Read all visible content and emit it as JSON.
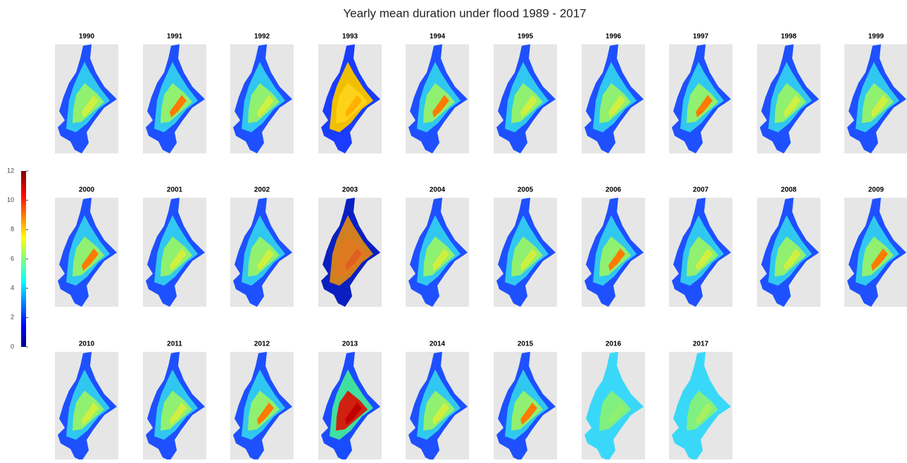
{
  "title": "Yearly mean duration under flood 1989 - 2017",
  "years": [
    "1990",
    "1991",
    "1992",
    "1993",
    "1994",
    "1995",
    "1996",
    "1997",
    "1998",
    "1999",
    "2000",
    "2001",
    "2002",
    "2003",
    "2004",
    "2005",
    "2006",
    "2007",
    "2008",
    "2009",
    "2010",
    "2011",
    "2012",
    "2013",
    "2014",
    "2015",
    "2016",
    "2017"
  ],
  "colorbar": {
    "lim": [
      0,
      12
    ],
    "ticks": [
      0,
      2,
      4,
      6,
      8,
      10,
      12
    ]
  }
}
